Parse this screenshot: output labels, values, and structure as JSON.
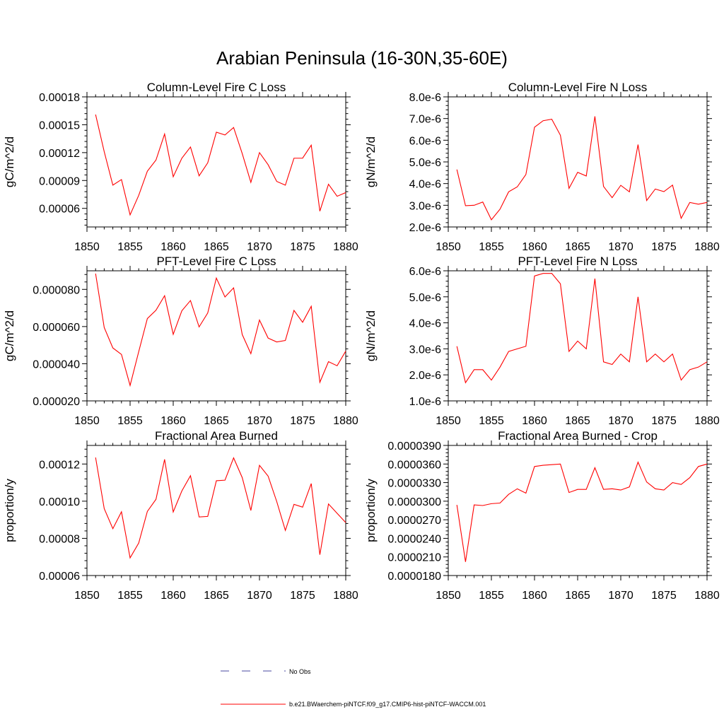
{
  "figure": {
    "title": "Arabian Peninsula (16-30N,35-60E)"
  },
  "legend": {
    "entries": [
      {
        "label": "No Obs",
        "color": "#4a4aa0",
        "dash": "dashed"
      },
      {
        "label": "b.e21.BWaerchem-piNTCF.f09_g17.CMIP6-hist-piNTCF-WACCM.001",
        "color": "#ff0000",
        "dash": "solid"
      }
    ]
  },
  "chart_data": [
    {
      "type": "line",
      "title": "Column-Level Fire C Loss",
      "ylabel": "gC/m^2/d",
      "xlabel": "",
      "xlim": [
        1850,
        1880
      ],
      "ylim": [
        4e-05,
        0.00018
      ],
      "xticks": [
        1850,
        1855,
        1860,
        1865,
        1870,
        1875,
        1880
      ],
      "xtick_labels": [
        "1850",
        "1855",
        "1860",
        "1865",
        "1870",
        "1875",
        "1880"
      ],
      "yticks": [
        6e-05,
        9e-05,
        0.00012,
        0.00015,
        0.00018
      ],
      "ytick_labels": [
        "0.00006",
        "0.00009",
        "0.00012",
        "0.00015",
        "0.00018"
      ],
      "series": [
        {
          "color": "#ff0000",
          "x": [
            1851,
            1852,
            1853,
            1854,
            1855,
            1856,
            1857,
            1858,
            1859,
            1860,
            1861,
            1862,
            1863,
            1864,
            1865,
            1866,
            1867,
            1868,
            1869,
            1870,
            1871,
            1872,
            1873,
            1874,
            1875,
            1876,
            1877,
            1878,
            1879,
            1880
          ],
          "y": [
            0.000161,
            0.000121,
            8.5e-05,
            9.1e-05,
            5.3e-05,
            7.4e-05,
            0.0001,
            0.000112,
            0.00014,
            9.4e-05,
            0.000114,
            0.000126,
            9.5e-05,
            0.000109,
            0.000142,
            0.000139,
            0.000147,
            0.000119,
            8.8e-05,
            0.00012,
            0.000107,
            8.9e-05,
            8.5e-05,
            0.000114,
            0.000114,
            0.000128,
            5.7e-05,
            8.6e-05,
            7.3e-05,
            7.7e-05
          ]
        }
      ]
    },
    {
      "type": "line",
      "title": "Column-Level Fire N Loss",
      "ylabel": "gN/m^2/d",
      "xlabel": "",
      "xlim": [
        1850,
        1880
      ],
      "ylim": [
        2e-06,
        8e-06
      ],
      "xticks": [
        1850,
        1855,
        1860,
        1865,
        1870,
        1875,
        1880
      ],
      "xtick_labels": [
        "1850",
        "1855",
        "1860",
        "1865",
        "1870",
        "1875",
        "1880"
      ],
      "yticks": [
        2e-06,
        3e-06,
        4e-06,
        5e-06,
        6e-06,
        7e-06,
        8e-06
      ],
      "ytick_labels": [
        "2.0e-6",
        "3.0e-6",
        "4.0e-6",
        "5.0e-6",
        "6.0e-6",
        "7.0e-6",
        "8.0e-6"
      ],
      "series": [
        {
          "color": "#ff0000",
          "x": [
            1851,
            1852,
            1853,
            1854,
            1855,
            1856,
            1857,
            1858,
            1859,
            1860,
            1861,
            1862,
            1863,
            1864,
            1865,
            1866,
            1867,
            1868,
            1869,
            1870,
            1871,
            1872,
            1873,
            1874,
            1875,
            1876,
            1877,
            1878,
            1879,
            1880
          ],
          "y": [
            4.65e-06,
            2.98e-06,
            3e-06,
            3.15e-06,
            2.33e-06,
            2.82e-06,
            3.62e-06,
            3.85e-06,
            4.42e-06,
            6.6e-06,
            6.9e-06,
            6.97e-06,
            6.23e-06,
            3.78e-06,
            4.52e-06,
            4.35e-06,
            7.1e-06,
            3.87e-06,
            3.35e-06,
            3.92e-06,
            3.62e-06,
            5.8e-06,
            3.22e-06,
            3.75e-06,
            3.63e-06,
            3.93e-06,
            2.4e-06,
            3.13e-06,
            3.05e-06,
            3.13e-06
          ]
        }
      ]
    },
    {
      "type": "line",
      "title": "PFT-Level Fire C Loss",
      "ylabel": "gC/m^2/d",
      "xlabel": "",
      "xlim": [
        1850,
        1880
      ],
      "ylim": [
        2e-05,
        9e-05
      ],
      "xticks": [
        1850,
        1855,
        1860,
        1865,
        1870,
        1875,
        1880
      ],
      "xtick_labels": [
        "1850",
        "1855",
        "1860",
        "1865",
        "1870",
        "1875",
        "1880"
      ],
      "yticks": [
        2e-05,
        4e-05,
        6e-05,
        8e-05
      ],
      "ytick_labels": [
        "0.000020",
        "0.000040",
        "0.000060",
        "0.000080"
      ],
      "series": [
        {
          "color": "#ff0000",
          "x": [
            1851,
            1852,
            1853,
            1854,
            1855,
            1856,
            1857,
            1858,
            1859,
            1860,
            1861,
            1862,
            1863,
            1864,
            1865,
            1866,
            1867,
            1868,
            1869,
            1870,
            1871,
            1872,
            1873,
            1874,
            1875,
            1876,
            1877,
            1878,
            1879,
            1880
          ],
          "y": [
            8.85e-05,
            5.95e-05,
            4.85e-05,
            4.5e-05,
            2.83e-05,
            4.65e-05,
            6.43e-05,
            6.88e-05,
            7.66e-05,
            5.58e-05,
            6.85e-05,
            7.4e-05,
            5.98e-05,
            6.73e-05,
            8.61e-05,
            7.59e-05,
            8.08e-05,
            5.57e-05,
            4.54e-05,
            6.35e-05,
            5.38e-05,
            5.17e-05,
            5.25e-05,
            6.87e-05,
            6.23e-05,
            7.09e-05,
            3e-05,
            4.11e-05,
            3.89e-05,
            4.68e-05
          ]
        }
      ]
    },
    {
      "type": "line",
      "title": "PFT-Level Fire N Loss",
      "ylabel": "gN/m^2/d",
      "xlabel": "",
      "xlim": [
        1850,
        1880
      ],
      "ylim": [
        1e-06,
        6e-06
      ],
      "xticks": [
        1850,
        1855,
        1860,
        1865,
        1870,
        1875,
        1880
      ],
      "xtick_labels": [
        "1850",
        "1855",
        "1860",
        "1865",
        "1870",
        "1875",
        "1880"
      ],
      "yticks": [
        1e-06,
        2e-06,
        3e-06,
        4e-06,
        5e-06,
        6e-06
      ],
      "ytick_labels": [
        "1.0e-6",
        "2.0e-6",
        "3.0e-6",
        "4.0e-6",
        "5.0e-6",
        "6.0e-6"
      ],
      "series": [
        {
          "color": "#ff0000",
          "x": [
            1851,
            1852,
            1853,
            1854,
            1855,
            1856,
            1857,
            1858,
            1859,
            1860,
            1861,
            1862,
            1863,
            1864,
            1865,
            1866,
            1867,
            1868,
            1869,
            1870,
            1871,
            1872,
            1873,
            1874,
            1875,
            1876,
            1877,
            1878,
            1879,
            1880
          ],
          "y": [
            3.1e-06,
            1.7e-06,
            2.2e-06,
            2.2e-06,
            1.8e-06,
            2.3e-06,
            2.9e-06,
            3e-06,
            3.1e-06,
            5.8e-06,
            5.9e-06,
            5.9e-06,
            5.5e-06,
            2.9e-06,
            3.3e-06,
            3e-06,
            5.7e-06,
            2.5e-06,
            2.4e-06,
            2.8e-06,
            2.5e-06,
            5e-06,
            2.5e-06,
            2.8e-06,
            2.5e-06,
            2.8e-06,
            1.8e-06,
            2.2e-06,
            2.3e-06,
            2.5e-06
          ]
        }
      ]
    },
    {
      "type": "line",
      "title": "Fractional Area Burned",
      "ylabel": "proportion/y",
      "xlabel": "",
      "xlim": [
        1850,
        1880
      ],
      "ylim": [
        6e-05,
        0.00013
      ],
      "xticks": [
        1850,
        1855,
        1860,
        1865,
        1870,
        1875,
        1880
      ],
      "xtick_labels": [
        "1850",
        "1855",
        "1860",
        "1865",
        "1870",
        "1875",
        "1880"
      ],
      "yticks": [
        6e-05,
        8e-05,
        0.0001,
        0.00012
      ],
      "ytick_labels": [
        "0.00006",
        "0.00008",
        "0.00010",
        "0.00012"
      ],
      "series": [
        {
          "color": "#ff0000",
          "x": [
            1851,
            1852,
            1853,
            1854,
            1855,
            1856,
            1857,
            1858,
            1859,
            1860,
            1861,
            1862,
            1863,
            1864,
            1865,
            1866,
            1867,
            1868,
            1869,
            1870,
            1871,
            1872,
            1873,
            1874,
            1875,
            1876,
            1877,
            1878,
            1879,
            1880
          ],
          "y": [
            0.0001235,
            9.6e-05,
            8.52e-05,
            9.43e-05,
            6.95e-05,
            7.75e-05,
            9.45e-05,
            0.000101,
            0.0001225,
            9.42e-05,
            0.0001055,
            0.0001137,
            9.15e-05,
            9.18e-05,
            0.000111,
            0.0001113,
            0.0001233,
            0.0001127,
            9.5e-05,
            0.0001193,
            0.0001135,
            9.98e-05,
            8.43e-05,
            9.83e-05,
            9.68e-05,
            0.0001095,
            7.12e-05,
            9.85e-05,
            9.35e-05,
            8.85e-05
          ]
        }
      ]
    },
    {
      "type": "line",
      "title": "Fractional Area Burned - Crop",
      "ylabel": "proportion/y",
      "xlabel": "",
      "xlim": [
        1850,
        1880
      ],
      "ylim": [
        1.8e-05,
        3.9e-05
      ],
      "xticks": [
        1850,
        1855,
        1860,
        1865,
        1870,
        1875,
        1880
      ],
      "xtick_labels": [
        "1850",
        "1855",
        "1860",
        "1865",
        "1870",
        "1875",
        "1880"
      ],
      "yticks": [
        1.8e-05,
        2.1e-05,
        2.4e-05,
        2.7e-05,
        3e-05,
        3.3e-05,
        3.6e-05,
        3.9e-05
      ],
      "ytick_labels": [
        "0.0000180",
        "0.0000210",
        "0.0000240",
        "0.0000270",
        "0.0000300",
        "0.0000330",
        "0.0000360",
        "0.0000390"
      ],
      "series": [
        {
          "color": "#ff0000",
          "x": [
            1851,
            1852,
            1853,
            1854,
            1855,
            1856,
            1857,
            1858,
            1859,
            1860,
            1861,
            1862,
            1863,
            1864,
            1865,
            1866,
            1867,
            1868,
            1869,
            1870,
            1871,
            1872,
            1873,
            1874,
            1875,
            1876,
            1877,
            1878,
            1879,
            1880
          ],
          "y": [
            2.94e-05,
            2.02e-05,
            2.94e-05,
            2.93e-05,
            2.96e-05,
            2.97e-05,
            3.11e-05,
            3.2e-05,
            3.13e-05,
            3.56e-05,
            3.58e-05,
            3.59e-05,
            3.6e-05,
            3.14e-05,
            3.19e-05,
            3.19e-05,
            3.54e-05,
            3.19e-05,
            3.2e-05,
            3.18e-05,
            3.23e-05,
            3.63e-05,
            3.31e-05,
            3.2e-05,
            3.18e-05,
            3.3e-05,
            3.27e-05,
            3.38e-05,
            3.56e-05,
            3.6e-05
          ]
        }
      ]
    }
  ]
}
